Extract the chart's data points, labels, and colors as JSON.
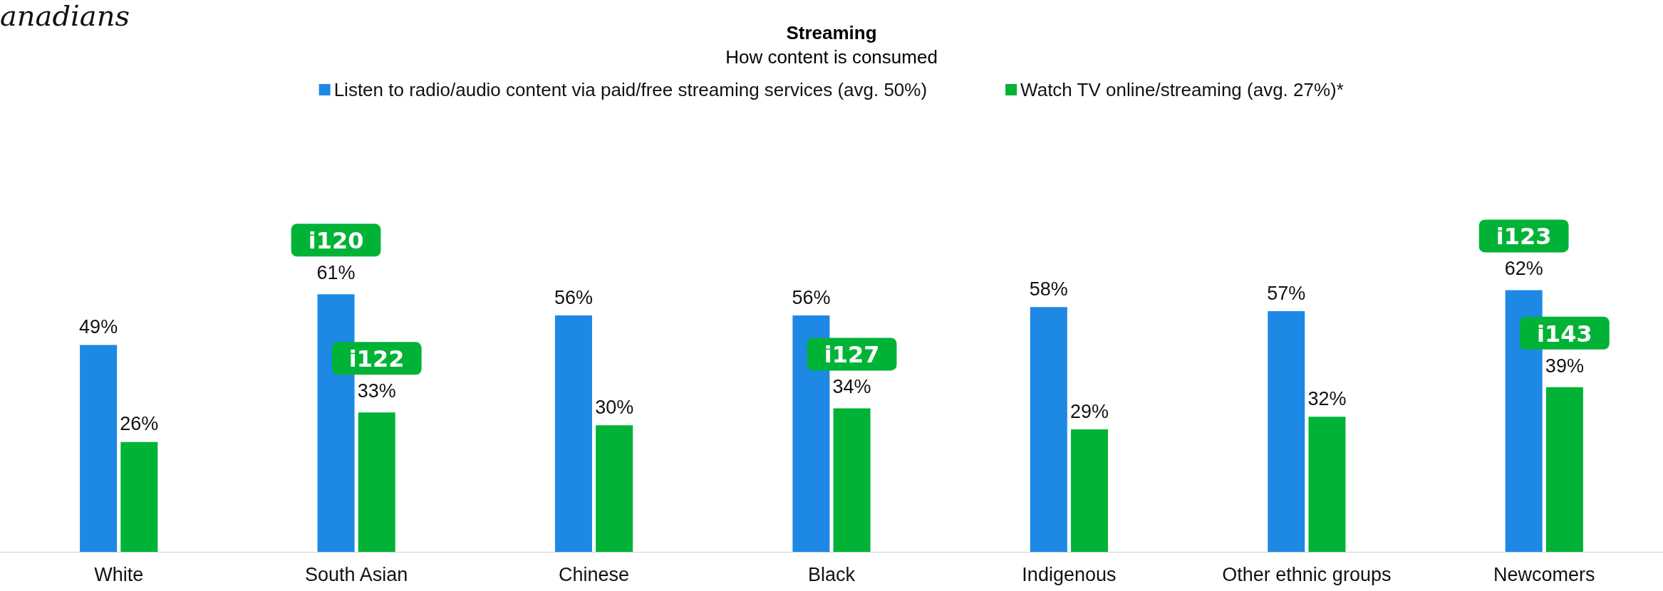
{
  "chart_data": {
    "type": "bar",
    "title": "Streaming",
    "subtitle": "How content is consumed",
    "categories": [
      "White",
      "South Asian",
      "Chinese",
      "Black",
      "Indigenous",
      "Other ethnic groups",
      "Newcomers"
    ],
    "series": [
      {
        "name": "Listen to radio/audio content via paid/free streaming services (avg. 50%)",
        "color": "#1e88e5",
        "values": [
          49,
          61,
          56,
          56,
          58,
          57,
          62
        ],
        "value_labels": [
          "49%",
          "61%",
          "56%",
          "56%",
          "58%",
          "57%",
          "62%"
        ]
      },
      {
        "name": "Watch TV online/streaming (avg. 27%)*",
        "color": "#00b336",
        "values": [
          26,
          33,
          30,
          34,
          29,
          32,
          39
        ],
        "value_labels": [
          "26%",
          "33%",
          "30%",
          "34%",
          "29%",
          "32%",
          "39%"
        ]
      }
    ],
    "legend": "top",
    "annotations": [
      "anadians",
      {
        "text": "i120",
        "x": "South Asian",
        "y": 61
      },
      {
        "text": "i122",
        "x": "South Asian",
        "y": 33
      },
      {
        "text": "i127",
        "x": "Black",
        "y": 34
      },
      {
        "text": "i123",
        "x": "Newcomers",
        "y": 62
      },
      {
        "text": "i143",
        "x": "Newcomers",
        "y": 39
      }
    ]
  }
}
